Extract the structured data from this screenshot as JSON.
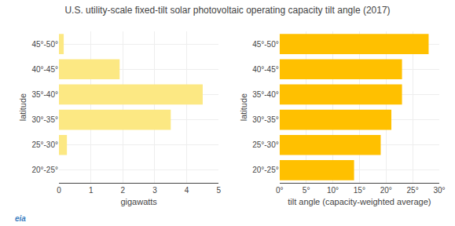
{
  "title": "U.S. utility-scale fixed-tilt solar photovoltaic operating capacity tilt angle (2017)",
  "annotations": [
    {
      "text": "eia",
      "color": "#3a7ebf"
    }
  ],
  "chart_data": [
    {
      "type": "bar",
      "orientation": "horizontal",
      "categories": [
        "45°-50°",
        "40°-45°",
        "35°-40°",
        "30°-35°",
        "25°-30°",
        "20°-25°"
      ],
      "values": [
        0.15,
        1.9,
        4.5,
        3.5,
        0.25,
        0.0
      ],
      "color": "#fce883",
      "xlabel": "gigawatts",
      "ylabel": "latitude",
      "xlim": [
        0,
        5
      ],
      "xticks": [
        0,
        1,
        2,
        3,
        4,
        5
      ],
      "grid": true
    },
    {
      "type": "bar",
      "orientation": "horizontal",
      "categories": [
        "45°-50°",
        "40°-45°",
        "35°-40°",
        "30°-35°",
        "25°-30°",
        "20°-25°"
      ],
      "values": [
        28,
        23,
        23,
        21,
        19,
        14
      ],
      "color": "#ffc000",
      "xlabel": "tilt angle (capacity-weighted average)",
      "ylabel": "latitude",
      "xlim": [
        0,
        30
      ],
      "xticks": [
        {
          "value": 0,
          "label": "0°"
        },
        {
          "value": 5,
          "label": "5°"
        },
        {
          "value": 10,
          "label": "10°"
        },
        {
          "value": 15,
          "label": "15°"
        },
        {
          "value": 20,
          "label": "20°"
        },
        {
          "value": 25,
          "label": "25°"
        },
        {
          "value": 30,
          "label": "30°"
        }
      ],
      "grid": true
    }
  ]
}
